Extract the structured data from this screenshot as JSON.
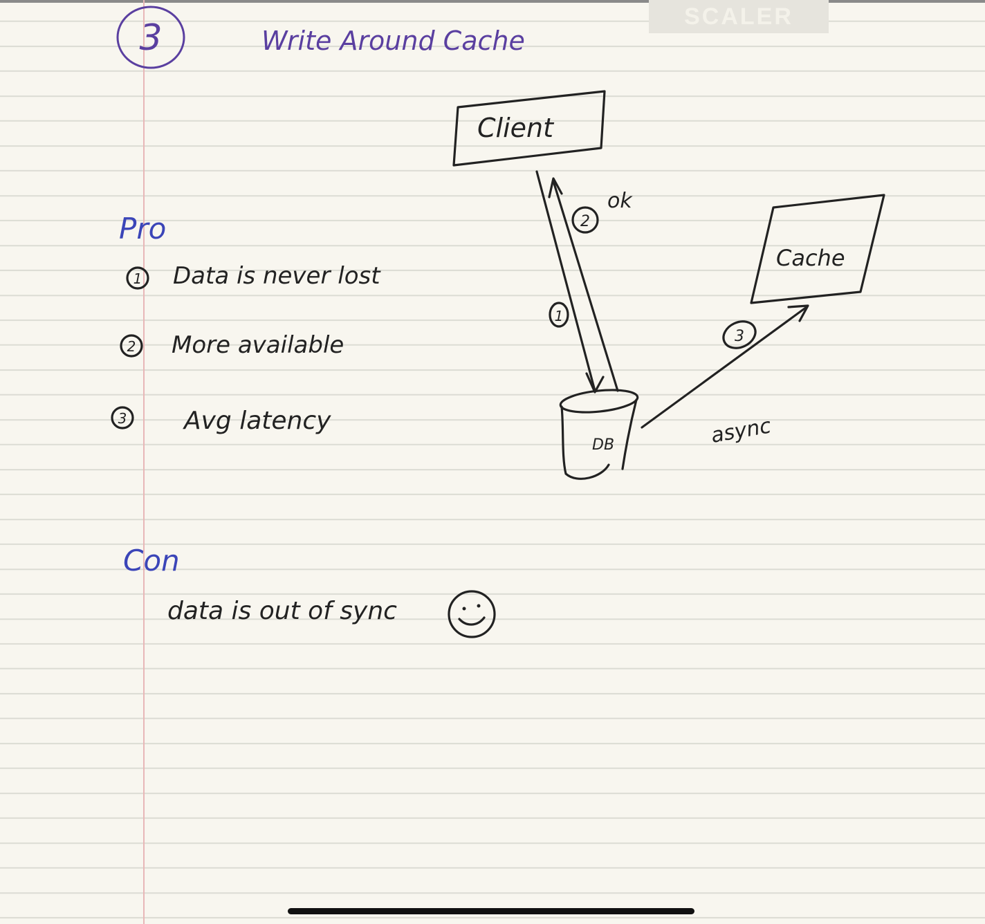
{
  "watermark": "SCALER",
  "title": {
    "number": "3",
    "text": "Write Around Cache"
  },
  "diagram": {
    "client_label": "Client",
    "cache_label": "Cache",
    "db_label": "DB",
    "step1_label": "1",
    "step2_label": "2",
    "step2_text": "ok",
    "step3_label": "3",
    "async_label": "async"
  },
  "pros": {
    "heading": "Pro",
    "items": [
      {
        "num": "1",
        "text": "Data is never lost"
      },
      {
        "num": "2",
        "text": "More available"
      },
      {
        "num": "3",
        "text": "Avg latency"
      }
    ]
  },
  "cons": {
    "heading": "Con",
    "items": [
      {
        "text": "data is out of sync",
        "emoji": "☺"
      }
    ]
  }
}
